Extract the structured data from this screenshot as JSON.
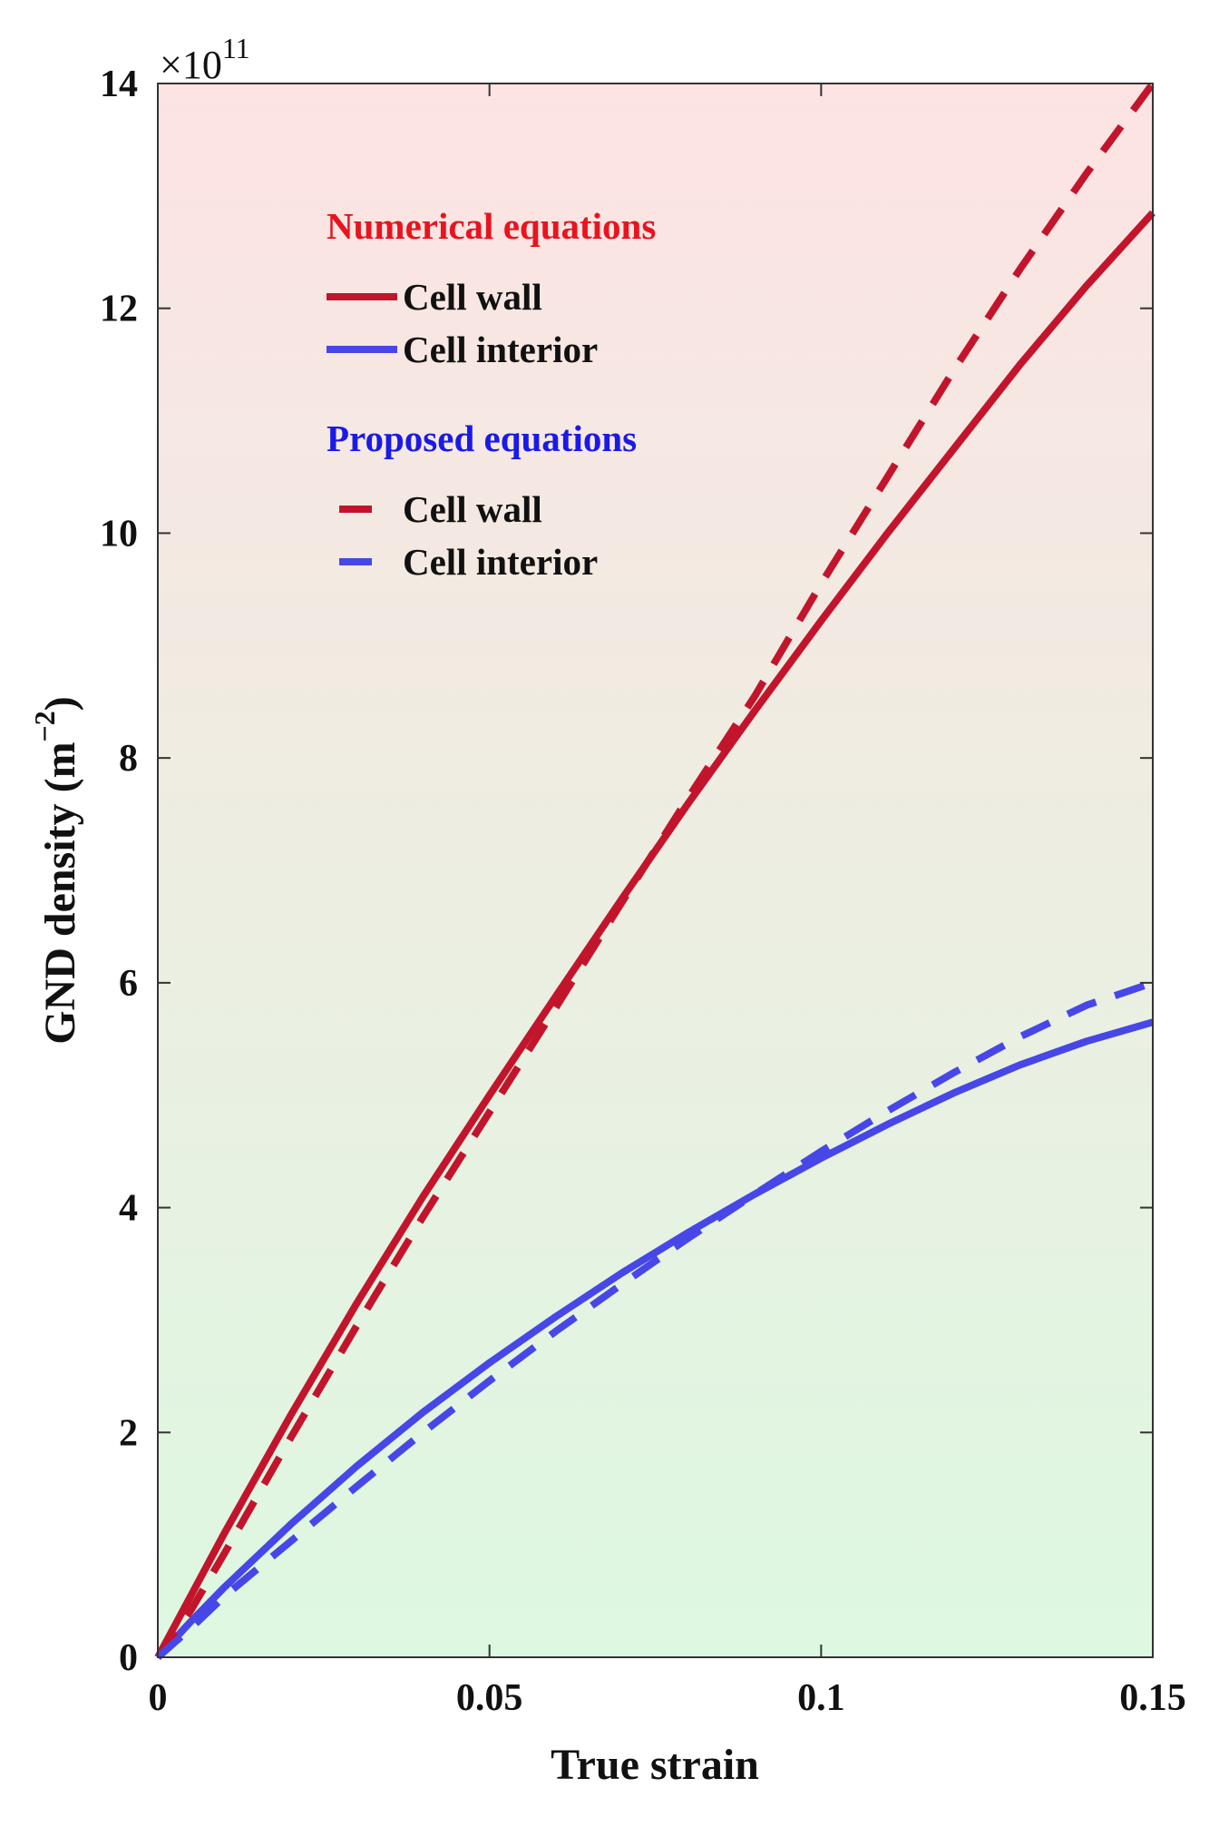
{
  "chart_data": {
    "type": "line",
    "title": "",
    "xlabel": "True strain",
    "ylabel": "GND density (m",
    "ylabel_sup": "−2",
    "ylabel_close": ")",
    "exponent_prefix": "×10",
    "exponent_power": "11",
    "xlim": [
      0,
      0.15
    ],
    "ylim": [
      0,
      14
    ],
    "y_scale": 100000000000.0,
    "xticks": [
      0,
      0.05,
      0.1,
      0.15
    ],
    "xtick_labels": [
      "0",
      "0.05",
      "0.1",
      "0.15"
    ],
    "yticks": [
      0,
      2,
      4,
      6,
      8,
      10,
      12,
      14
    ],
    "ytick_labels": [
      "0",
      "2",
      "4",
      "6",
      "8",
      "10",
      "12",
      "14"
    ],
    "grid": false,
    "background": {
      "top": "#fde3e3",
      "bottom": "#ddf8e1"
    },
    "legend": {
      "position": "top-left",
      "groups": [
        {
          "title": "Numerical equations",
          "title_color": "#e8141e",
          "entries": [
            {
              "label": "Cell wall",
              "series": "numerical_cell_wall"
            },
            {
              "label": "Cell interior",
              "series": "numerical_cell_interior"
            }
          ]
        },
        {
          "title": "Proposed equations",
          "title_color": "#1a1ae8",
          "entries": [
            {
              "label": "Cell wall",
              "series": "proposed_cell_wall"
            },
            {
              "label": "Cell interior",
              "series": "proposed_cell_interior"
            }
          ]
        }
      ]
    },
    "x": [
      0,
      0.005,
      0.01,
      0.02,
      0.03,
      0.04,
      0.05,
      0.06,
      0.07,
      0.08,
      0.09,
      0.1,
      0.11,
      0.12,
      0.13,
      0.14,
      0.15
    ],
    "series": [
      {
        "id": "numerical_cell_wall",
        "name": "Cell wall",
        "color": "#c2152c",
        "style": "solid",
        "values": [
          0,
          0.55,
          1.1,
          2.15,
          3.15,
          4.1,
          5.0,
          5.88,
          6.75,
          7.6,
          8.42,
          9.22,
          10.0,
          10.75,
          11.5,
          12.2,
          12.85
        ]
      },
      {
        "id": "numerical_cell_interior",
        "name": "Cell interior",
        "color": "#4747e8",
        "style": "solid",
        "values": [
          0,
          0.32,
          0.62,
          1.18,
          1.7,
          2.18,
          2.62,
          3.03,
          3.42,
          3.78,
          4.12,
          4.44,
          4.74,
          5.02,
          5.27,
          5.48,
          5.65
        ]
      },
      {
        "id": "proposed_cell_wall",
        "name": "Cell wall",
        "color": "#c2152c",
        "style": "dashed",
        "values": [
          0,
          0.42,
          0.92,
          1.95,
          2.95,
          3.92,
          4.85,
          5.78,
          6.72,
          7.65,
          8.55,
          9.55,
          10.5,
          11.45,
          12.35,
          13.2,
          14.0
        ]
      },
      {
        "id": "proposed_cell_interior",
        "name": "Cell interior",
        "color": "#4747e8",
        "style": "dashed",
        "values": [
          0,
          0.26,
          0.54,
          1.03,
          1.52,
          2.0,
          2.46,
          2.9,
          3.32,
          3.73,
          4.12,
          4.5,
          4.86,
          5.2,
          5.52,
          5.8,
          6.0
        ]
      }
    ]
  }
}
